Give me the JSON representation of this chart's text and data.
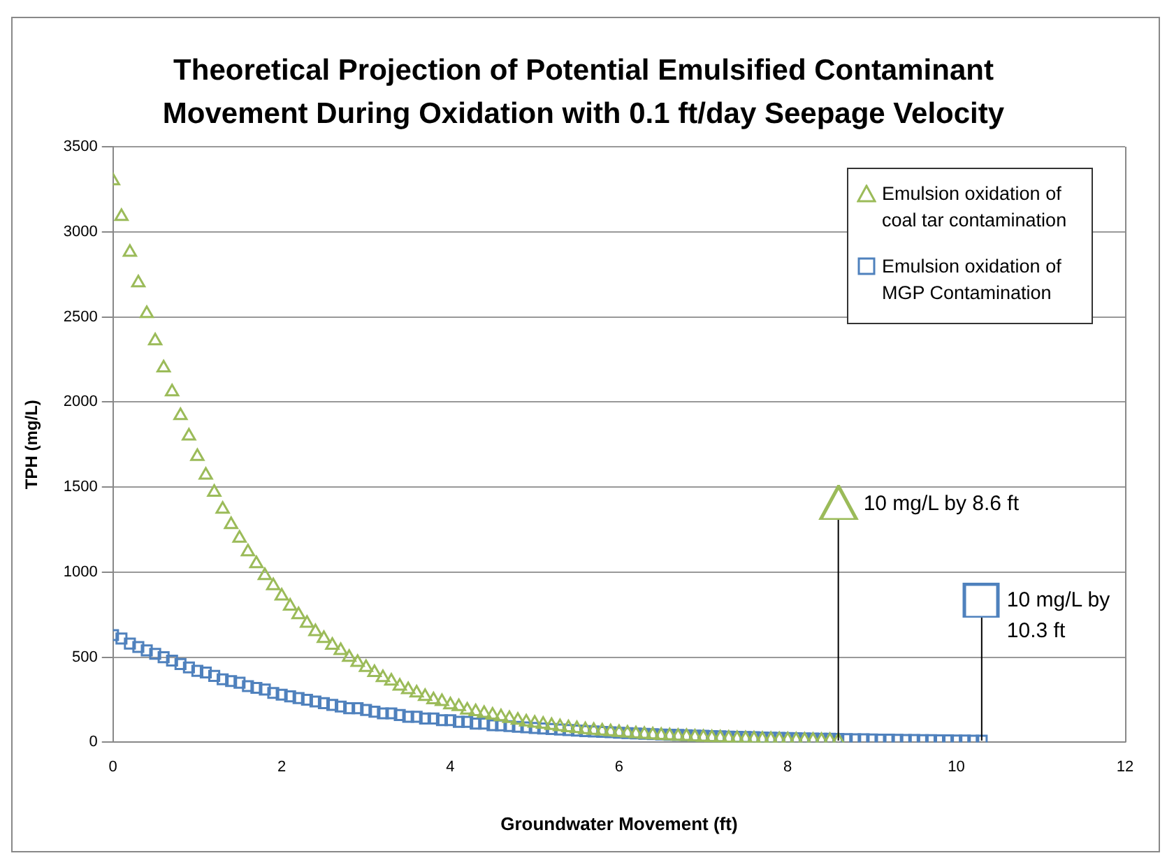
{
  "chart_data": {
    "type": "scatter",
    "title": "Theoretical Projection of Potential Emulsified Contaminant Movement During Oxidation with 0.1 ft/day Seepage Velocity",
    "xlabel": "Groundwater Movement (ft)",
    "ylabel": "TPH (mg/L)",
    "xlim": [
      0,
      12
    ],
    "xticks": [
      0,
      2,
      4,
      6,
      8,
      10,
      12
    ],
    "ylim": [
      0,
      3500
    ],
    "yticks": [
      0,
      500,
      1000,
      1500,
      2000,
      2500,
      3000,
      3500
    ],
    "grid": "y",
    "legend": "top right",
    "series": [
      {
        "name": "Emulsion oxidation of coal tar contamination",
        "color": "#9bbb59",
        "marker": "triangle",
        "x": [
          0,
          0.1,
          0.2,
          0.3,
          0.4,
          0.5,
          0.6,
          0.7,
          0.8,
          0.9,
          1,
          1.1,
          1.2,
          1.3,
          1.4,
          1.5,
          1.6,
          1.7,
          1.8,
          1.9,
          2,
          2.1,
          2.2,
          2.3,
          2.4,
          2.5,
          2.6,
          2.7,
          2.8,
          2.9,
          3,
          3.1,
          3.2,
          3.3,
          3.4,
          3.5,
          3.6,
          3.7,
          3.8,
          3.9,
          4,
          4.1,
          4.2,
          4.3,
          4.4,
          4.5,
          4.6,
          4.7,
          4.8,
          4.9,
          5,
          5.1,
          5.2,
          5.3,
          5.4,
          5.5,
          5.6,
          5.7,
          5.8,
          5.9,
          6,
          6.1,
          6.2,
          6.3,
          6.4,
          6.5,
          6.6,
          6.7,
          6.8,
          6.9,
          7,
          7.1,
          7.2,
          7.3,
          7.4,
          7.5,
          7.6,
          7.7,
          7.8,
          7.9,
          8,
          8.1,
          8.2,
          8.3,
          8.4,
          8.5,
          8.6
        ],
        "values": [
          3300,
          3090,
          2880,
          2700,
          2520,
          2360,
          2200,
          2060,
          1920,
          1800,
          1680,
          1570,
          1470,
          1370,
          1280,
          1200,
          1120,
          1050,
          980,
          920,
          860,
          800,
          750,
          700,
          650,
          610,
          570,
          540,
          500,
          470,
          440,
          410,
          380,
          360,
          330,
          310,
          290,
          270,
          250,
          240,
          220,
          210,
          190,
          180,
          170,
          160,
          150,
          140,
          130,
          120,
          113,
          106,
          99,
          92,
          86,
          81,
          75,
          70,
          66,
          62,
          58,
          54,
          50,
          47,
          44,
          41,
          39,
          36,
          34,
          31,
          29,
          27,
          26,
          24,
          22,
          21,
          20,
          18,
          17,
          16,
          15,
          14,
          13,
          12,
          11,
          11,
          10
        ]
      },
      {
        "name": "Emulsion oxidation of MGP Contamination",
        "color": "#4f81bd",
        "marker": "square",
        "x": [
          0,
          0.1,
          0.2,
          0.3,
          0.4,
          0.5,
          0.6,
          0.7,
          0.8,
          0.9,
          1,
          1.1,
          1.2,
          1.3,
          1.4,
          1.5,
          1.6,
          1.7,
          1.8,
          1.9,
          2,
          2.1,
          2.2,
          2.3,
          2.4,
          2.5,
          2.6,
          2.7,
          2.8,
          2.9,
          3,
          3.1,
          3.2,
          3.3,
          3.4,
          3.5,
          3.6,
          3.7,
          3.8,
          3.9,
          4,
          4.1,
          4.2,
          4.3,
          4.4,
          4.5,
          4.6,
          4.7,
          4.8,
          4.9,
          5,
          5.1,
          5.2,
          5.3,
          5.4,
          5.5,
          5.6,
          5.7,
          5.8,
          5.9,
          6,
          6.1,
          6.2,
          6.3,
          6.4,
          6.5,
          6.6,
          6.7,
          6.8,
          6.9,
          7,
          7.1,
          7.2,
          7.3,
          7.4,
          7.5,
          7.6,
          7.7,
          7.8,
          7.9,
          8,
          8.1,
          8.2,
          8.3,
          8.4,
          8.5,
          8.6,
          8.7,
          8.8,
          8.9,
          9,
          9.1,
          9.2,
          9.3,
          9.4,
          9.5,
          9.6,
          9.7,
          9.8,
          9.9,
          10,
          10.1,
          10.2,
          10.3
        ],
        "values": [
          630,
          610,
          580,
          560,
          540,
          520,
          500,
          480,
          460,
          440,
          420,
          410,
          390,
          370,
          360,
          350,
          330,
          320,
          310,
          290,
          280,
          270,
          260,
          250,
          240,
          230,
          220,
          210,
          200,
          200,
          190,
          180,
          170,
          170,
          160,
          150,
          150,
          140,
          140,
          130,
          130,
          120,
          120,
          110,
          110,
          100,
          99,
          95,
          91,
          88,
          84,
          81,
          78,
          75,
          72,
          69,
          66,
          64,
          61,
          59,
          56,
          54,
          52,
          50,
          48,
          46,
          44,
          43,
          41,
          39,
          38,
          36,
          35,
          33,
          32,
          31,
          30,
          28,
          27,
          26,
          25,
          24,
          23,
          22,
          21,
          21,
          20,
          19,
          18,
          18,
          17,
          16,
          16,
          15,
          14,
          14,
          13,
          13,
          12,
          12,
          11,
          11,
          10,
          10
        ]
      }
    ],
    "annotations": [
      {
        "text": "10 mg/L by 8.6 ft",
        "x": 8.6,
        "y": 10
      },
      {
        "text": "10 mg/L by 10.3 ft",
        "x": 10.3,
        "y": 10
      }
    ]
  }
}
